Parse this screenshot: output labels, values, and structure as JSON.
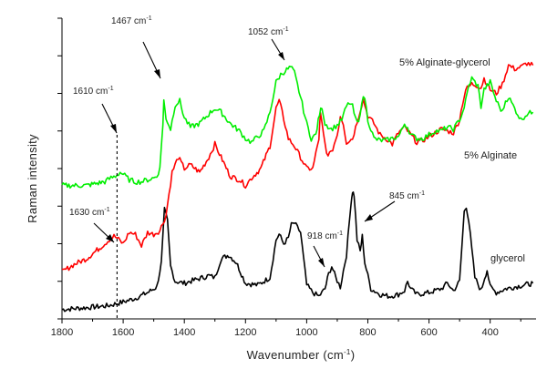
{
  "chart_data": {
    "type": "line",
    "xlabel": "Wavenumber (cm",
    "xlabel_sup": "-1",
    "xlabel_end": ")",
    "ylabel": "Raman intensity",
    "xlim": [
      1800,
      250
    ],
    "x_reversed": true,
    "ylim": [
      0,
      16
    ],
    "y_ticks_labeled": false,
    "x_ticks": [
      {
        "value": 1800,
        "label": "1800"
      },
      {
        "value": 1600,
        "label": "1600"
      },
      {
        "value": 1400,
        "label": "1400"
      },
      {
        "value": 1200,
        "label": "1200"
      },
      {
        "value": 1000,
        "label": "1000"
      },
      {
        "value": 800,
        "label": "800"
      },
      {
        "value": 600,
        "label": "600"
      },
      {
        "value": 400,
        "label": "400"
      }
    ],
    "series": [
      {
        "name": "glycerol",
        "color": "#000000",
        "x": [
          1800,
          1720,
          1650,
          1600,
          1560,
          1520,
          1490,
          1475,
          1465,
          1455,
          1445,
          1430,
          1400,
          1360,
          1320,
          1300,
          1280,
          1255,
          1230,
          1200,
          1160,
          1120,
          1100,
          1090,
          1075,
          1060,
          1050,
          1040,
          1020,
          1000,
          980,
          960,
          940,
          928,
          918,
          905,
          890,
          870,
          855,
          850,
          845,
          835,
          825,
          818,
          810,
          790,
          760,
          730,
          700,
          680,
          670,
          660,
          640,
          600,
          560,
          540,
          520,
          500,
          485,
          478,
          470,
          450,
          430,
          418,
          410,
          400,
          380,
          350,
          320,
          290,
          260
        ],
        "y": [
          0.5,
          0.6,
          0.7,
          0.9,
          1.1,
          1.4,
          1.7,
          3.0,
          5.8,
          5.2,
          2.8,
          2.0,
          1.9,
          2.1,
          2.3,
          2.2,
          3.2,
          3.4,
          3.0,
          1.9,
          1.8,
          2.2,
          4.2,
          4.5,
          4.0,
          4.3,
          5.0,
          5.1,
          4.6,
          1.8,
          1.4,
          1.2,
          1.6,
          2.4,
          2.8,
          2.2,
          1.7,
          3.4,
          6.2,
          6.8,
          6.6,
          4.2,
          3.6,
          4.4,
          3.0,
          1.6,
          1.3,
          1.2,
          1.3,
          1.5,
          2.0,
          1.6,
          1.3,
          1.4,
          1.6,
          1.9,
          1.5,
          2.0,
          5.7,
          6.0,
          5.2,
          2.2,
          1.5,
          2.2,
          2.6,
          1.7,
          1.4,
          1.6,
          1.7,
          1.8,
          1.9
        ]
      },
      {
        "name": "5% Alginate",
        "color": "#ff0000",
        "x": [
          1800,
          1760,
          1720,
          1690,
          1660,
          1640,
          1630,
          1620,
          1600,
          1580,
          1560,
          1540,
          1520,
          1500,
          1480,
          1460,
          1440,
          1420,
          1400,
          1380,
          1350,
          1320,
          1300,
          1280,
          1250,
          1220,
          1200,
          1180,
          1150,
          1120,
          1100,
          1090,
          1080,
          1060,
          1040,
          1020,
          1000,
          980,
          960,
          955,
          945,
          935,
          920,
          900,
          890,
          880,
          870,
          850,
          830,
          815,
          800,
          780,
          760,
          740,
          720,
          700,
          680,
          660,
          640,
          620,
          600,
          580,
          560,
          540,
          520,
          500,
          490,
          480,
          460,
          440,
          430,
          420,
          400,
          380,
          360,
          350,
          340,
          320,
          300,
          280,
          260
        ],
        "y": [
          2.5,
          2.9,
          3.2,
          3.6,
          4.0,
          4.3,
          4.4,
          4.3,
          4.0,
          4.6,
          4.5,
          3.9,
          4.6,
          4.5,
          4.7,
          5.5,
          7.8,
          8.6,
          8.0,
          8.2,
          7.8,
          8.6,
          9.3,
          8.6,
          7.6,
          7.4,
          7.1,
          7.5,
          8.0,
          9.2,
          11.2,
          11.6,
          11.0,
          9.6,
          9.2,
          8.6,
          8.0,
          8.0,
          9.6,
          10.9,
          9.8,
          8.8,
          8.8,
          9.8,
          10.8,
          10.4,
          9.4,
          9.6,
          10.8,
          11.7,
          10.8,
          10.4,
          9.8,
          9.6,
          9.3,
          9.9,
          10.2,
          9.8,
          9.4,
          9.5,
          9.7,
          9.9,
          10.1,
          10.0,
          9.9,
          10.6,
          11.5,
          12.2,
          12.5,
          12.4,
          12.3,
          12.8,
          12.2,
          12.0,
          12.5,
          13.0,
          13.5,
          13.3,
          13.4,
          13.6,
          13.5
        ]
      },
      {
        "name": "5% Alginate-glycerol",
        "color": "#00ee00",
        "x": [
          1800,
          1760,
          1720,
          1690,
          1660,
          1640,
          1625,
          1610,
          1600,
          1580,
          1560,
          1540,
          1520,
          1500,
          1490,
          1480,
          1470,
          1467,
          1460,
          1445,
          1430,
          1415,
          1400,
          1380,
          1350,
          1320,
          1300,
          1280,
          1250,
          1220,
          1200,
          1180,
          1160,
          1140,
          1120,
          1100,
          1085,
          1070,
          1052,
          1040,
          1020,
          1000,
          985,
          970,
          958,
          950,
          940,
          920,
          900,
          885,
          870,
          860,
          850,
          840,
          830,
          820,
          810,
          800,
          780,
          760,
          740,
          720,
          700,
          690,
          680,
          670,
          660,
          640,
          620,
          600,
          580,
          560,
          540,
          520,
          500,
          490,
          480,
          470,
          460,
          440,
          430,
          420,
          400,
          380,
          360,
          350,
          340,
          320,
          300,
          280,
          260
        ],
        "y": [
          7.1,
          7.1,
          7.1,
          7.2,
          7.3,
          7.5,
          7.6,
          7.8,
          7.7,
          7.4,
          7.3,
          7.3,
          7.4,
          7.5,
          7.6,
          8.0,
          10.4,
          11.6,
          10.7,
          10.1,
          11.4,
          11.6,
          10.7,
          10.2,
          10.4,
          10.9,
          11.2,
          11.0,
          10.4,
          10.0,
          9.6,
          9.4,
          9.7,
          10.0,
          11.0,
          12.6,
          13.0,
          13.2,
          13.4,
          13.1,
          11.8,
          10.4,
          9.6,
          9.8,
          10.9,
          11.3,
          10.4,
          10.1,
          10.3,
          10.6,
          11.3,
          11.5,
          11.3,
          10.6,
          10.4,
          11.6,
          11.8,
          10.6,
          9.6,
          9.5,
          9.5,
          9.6,
          9.7,
          10.0,
          10.4,
          10.2,
          9.8,
          9.6,
          9.6,
          9.8,
          10.0,
          10.0,
          10.2,
          10.1,
          10.6,
          11.0,
          11.6,
          12.4,
          12.8,
          12.4,
          11.3,
          12.2,
          12.6,
          11.6,
          11.0,
          11.6,
          11.8,
          11.2,
          10.6,
          10.9,
          11.0
        ]
      }
    ],
    "series_labels": [
      {
        "text": "5% Alginate-glycerol",
        "series": 2
      },
      {
        "text": "5% Alginate",
        "series": 1
      },
      {
        "text": "glycerol",
        "series": 0
      }
    ],
    "annotations": [
      {
        "text": "1467 cm",
        "sup": "-1",
        "x": 1467
      },
      {
        "text": "1052 cm",
        "sup": "-1",
        "x": 1052
      },
      {
        "text": "1610 cm",
        "sup": "-1",
        "x": 1610
      },
      {
        "text": "1630 cm",
        "sup": "-1",
        "x": 1630
      },
      {
        "text": "918 cm",
        "sup": "-1",
        "x": 918
      },
      {
        "text": "845 cm",
        "sup": "-1",
        "x": 845
      }
    ],
    "dashed_line_x": 1620,
    "grid": false,
    "legend": "none"
  }
}
